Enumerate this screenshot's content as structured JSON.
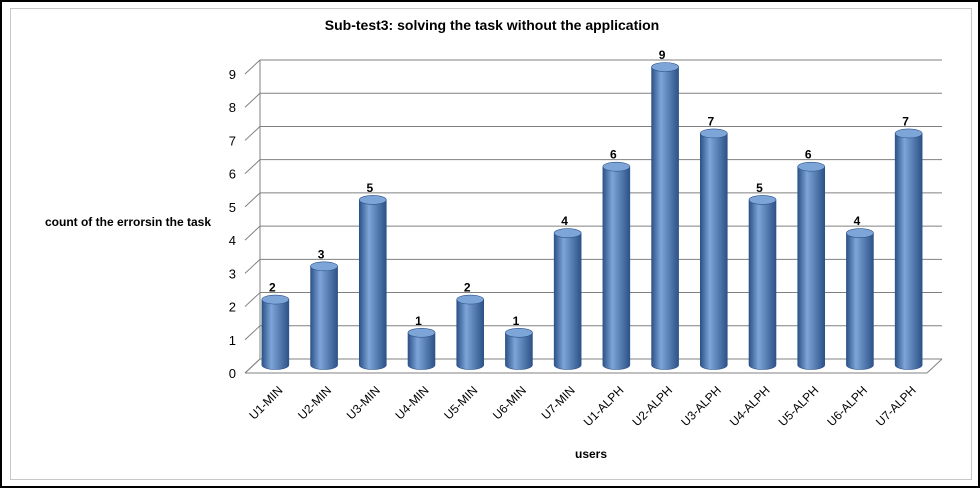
{
  "chart_data": {
    "type": "bar",
    "title": "Sub-test3: solving the task without the application",
    "xlabel": "users",
    "ylabel": "count of the errorsin the task",
    "categories": [
      "U1-MIN",
      "U2-MIN",
      "U3-MIN",
      "U4-MIN",
      "U5-MIN",
      "U6-MIN",
      "U7-MIN",
      "U1-ALPH",
      "U2-ALPH",
      "U3-ALPH",
      "U4-ALPH",
      "U5-ALPH",
      "U6-ALPH",
      "U7-ALPH"
    ],
    "values": [
      2,
      3,
      5,
      1,
      2,
      1,
      4,
      6,
      9,
      7,
      5,
      6,
      4,
      7
    ],
    "ylim": [
      0,
      9
    ],
    "yticks": [
      0,
      1,
      2,
      3,
      4,
      5,
      6,
      7,
      8,
      9
    ],
    "grid": true,
    "legend": "none",
    "data_labels": true,
    "style": "3d-cylinder",
    "colors": {
      "bar": "#4a7ebb",
      "bar_dark": "#2c5288",
      "bar_light": "#7ea5d8",
      "grid": "#808080"
    }
  }
}
